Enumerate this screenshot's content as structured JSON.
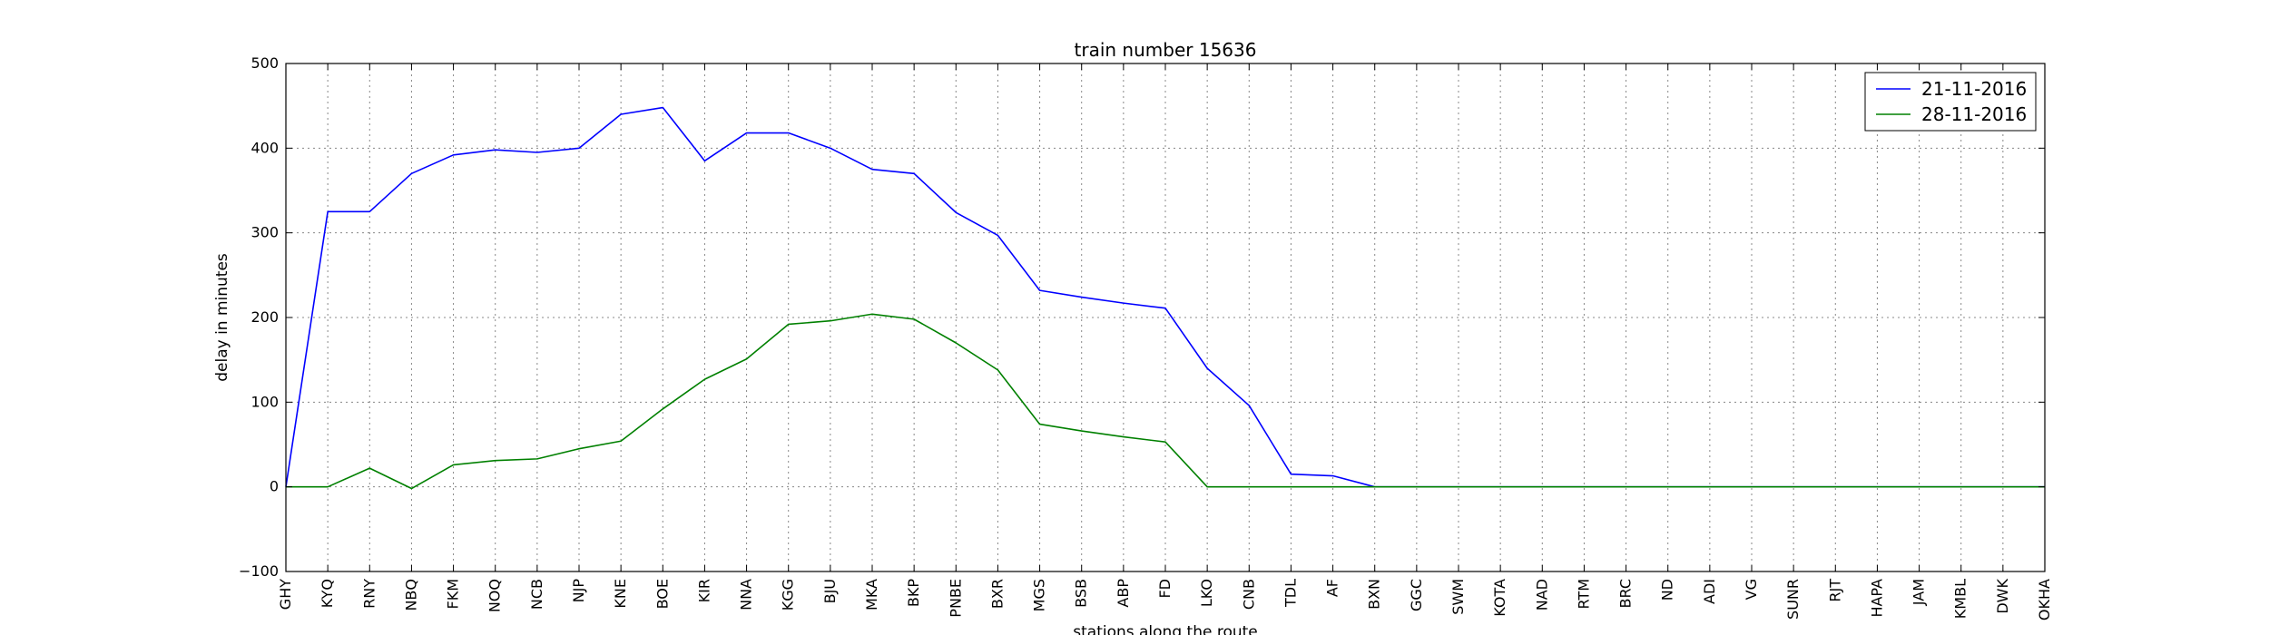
{
  "chart_data": {
    "type": "line",
    "title": "train number 15636",
    "xlabel": "stations along the route",
    "ylabel": "delay in minutes",
    "ylim": [
      -100,
      500
    ],
    "yticks": [
      -100,
      0,
      100,
      200,
      300,
      400,
      500
    ],
    "grid": true,
    "legend_position": "top-right",
    "categories": [
      "GHY",
      "KYQ",
      "RNY",
      "NBQ",
      "FKM",
      "NOQ",
      "NCB",
      "NJP",
      "KNE",
      "BOE",
      "KIR",
      "NNA",
      "KGG",
      "BJU",
      "MKA",
      "BKP",
      "PNBE",
      "BXR",
      "MGS",
      "BSB",
      "ABP",
      "FD",
      "LKO",
      "CNB",
      "TDL",
      "AF",
      "BXN",
      "GGC",
      "SWM",
      "KOTA",
      "NAD",
      "RTM",
      "BRC",
      "ND",
      "ADI",
      "VG",
      "SUNR",
      "RJT",
      "HAPA",
      "JAM",
      "KMBL",
      "DWK",
      "OKHA"
    ],
    "series": [
      {
        "name": "21-11-2016",
        "color": "#0000ff",
        "values": [
          0,
          325,
          325,
          370,
          392,
          398,
          395,
          400,
          440,
          448,
          385,
          418,
          418,
          400,
          375,
          370,
          324,
          297,
          232,
          224,
          217,
          211,
          140,
          96,
          15,
          13,
          0,
          0,
          0,
          0,
          0,
          0,
          0,
          0,
          0,
          0,
          0,
          0,
          0,
          0,
          0,
          0,
          0
        ]
      },
      {
        "name": "28-11-2016",
        "color": "#008000",
        "values": [
          0,
          0,
          22,
          -2,
          26,
          31,
          33,
          45,
          54,
          92,
          127,
          151,
          192,
          196,
          204,
          198,
          170,
          138,
          74,
          66,
          59,
          53,
          0,
          0,
          0,
          0,
          0,
          0,
          0,
          0,
          0,
          0,
          0,
          0,
          0,
          0,
          0,
          0,
          0,
          0,
          0,
          0,
          0
        ]
      }
    ]
  }
}
